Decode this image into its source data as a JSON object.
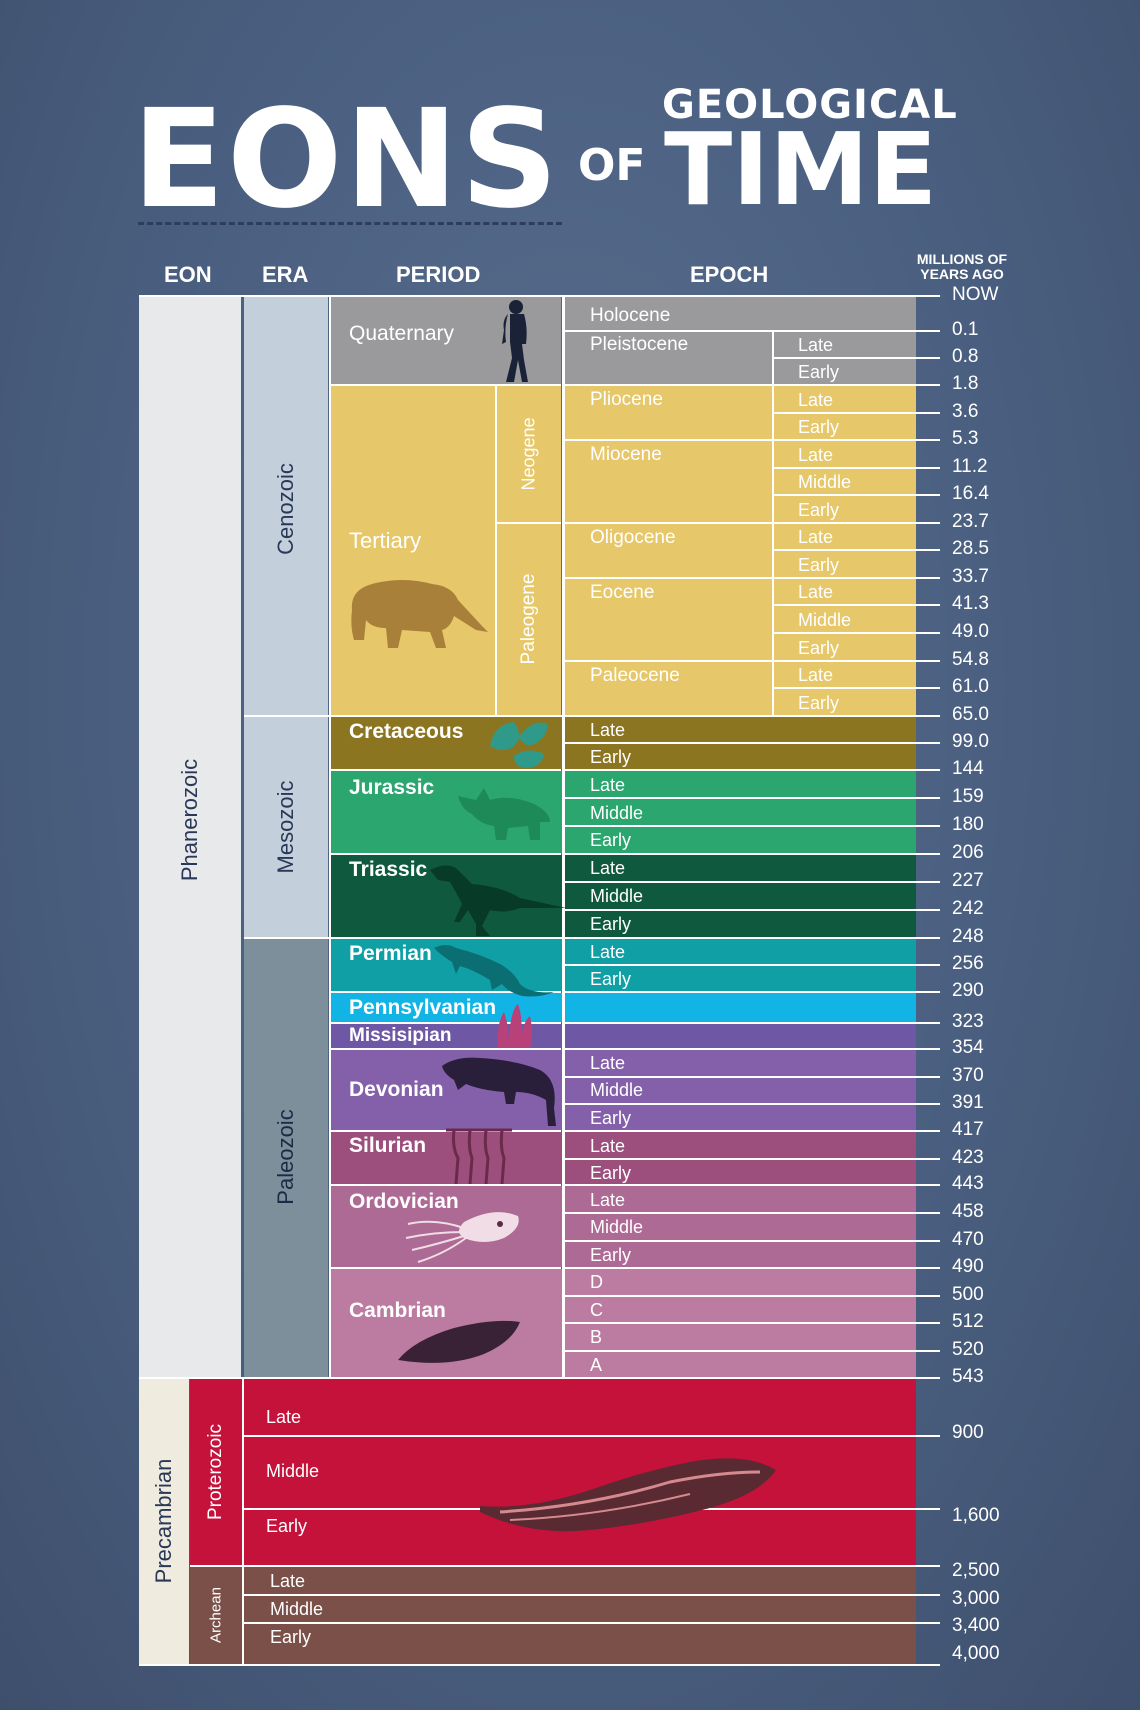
{
  "title": {
    "word1": "EONS",
    "of": "OF",
    "geological": "GEOLOGICAL",
    "time": "TIME"
  },
  "headers": {
    "eon": "EON",
    "era": "ERA",
    "period": "PERIOD",
    "epoch": "EPOCH",
    "mya_line1": "MILLIONS OF",
    "mya_line2": "YEARS AGO"
  },
  "eons": [
    "Phanerozoic",
    "Precambrian"
  ],
  "eras": [
    "Cenozoic",
    "Mesozoic",
    "Paleozoic",
    "Proterozoic",
    "Archean"
  ],
  "subperiods": [
    "Neogene",
    "Paleogene"
  ],
  "periods": [
    "Quaternary",
    "Tertiary",
    "Cretaceous",
    "Jurassic",
    "Triassic",
    "Permian",
    "Pennsylvanian",
    "Missisipian",
    "Devonian",
    "Silurian",
    "Ordovician",
    "Cambrian"
  ],
  "epochs": [
    "Holocene",
    "Pleistocene",
    "Pliocene",
    "Miocene",
    "Oligocene",
    "Eocene",
    "Paleocene"
  ],
  "subepochs": [
    "Late",
    "Early",
    "Late",
    "Early",
    "Late",
    "Middle",
    "Early",
    "Late",
    "Early",
    "Late",
    "Middle",
    "Early",
    "Late",
    "Early"
  ],
  "period_epochs": [
    "Late",
    "Early",
    "Late",
    "Middle",
    "Early",
    "Late",
    "Middle",
    "Early",
    "Late",
    "Early",
    "Late",
    "Middle",
    "Early",
    "Late",
    "Early",
    "Late",
    "Middle",
    "Early",
    "D",
    "C",
    "B",
    "A"
  ],
  "precambrian_epochs": [
    "Late",
    "Middle",
    "Early",
    "Late",
    "Middle",
    "Early"
  ],
  "mya": [
    "NOW",
    "0.1",
    "0.8",
    "1.8",
    "3.6",
    "5.3",
    "11.2",
    "16.4",
    "23.7",
    "28.5",
    "33.7",
    "41.3",
    "49.0",
    "54.8",
    "61.0",
    "65.0",
    "99.0",
    "144",
    "159",
    "180",
    "206",
    "227",
    "242",
    "248",
    "256",
    "290",
    "323",
    "354",
    "370",
    "391",
    "417",
    "423",
    "443",
    "458",
    "470",
    "490",
    "500",
    "512",
    "520",
    "543",
    "900",
    "1,600",
    "2,500",
    "3,000",
    "3,400",
    "4,000"
  ],
  "colors": {
    "background": "#4f6486",
    "quaternary": "#9a9a9c",
    "tertiary": "#e6c76a",
    "cretaceous": "#8c7520",
    "jurassic": "#2aa66e",
    "triassic": "#0f5a3e",
    "permian": "#0f9fa4",
    "pennsylvanian": "#12b4e6",
    "missisipian": "#6e58a6",
    "devonian": "#8560aa",
    "silurian": "#9c4e7c",
    "ordovician": "#ad6a94",
    "cambrian": "#bc7ca2",
    "proterozoic": "#c4123a",
    "archean": "#7a5048",
    "phanerozoic": "#e8e9eb",
    "precambrian": "#efecdf",
    "cenozoic": "#c3cfdb",
    "mesozoic": "#c3cfdb",
    "paleozoic": "#7d8f9b"
  },
  "icons": [
    "hominid-icon",
    "mammal-icon",
    "fern-icon",
    "triceratops-icon",
    "theropod-icon",
    "lizard-icon",
    "coral-icon",
    "amphibian-icon",
    "crinoid-icon",
    "squid-icon",
    "trilobite-icon",
    "worm-icon"
  ]
}
